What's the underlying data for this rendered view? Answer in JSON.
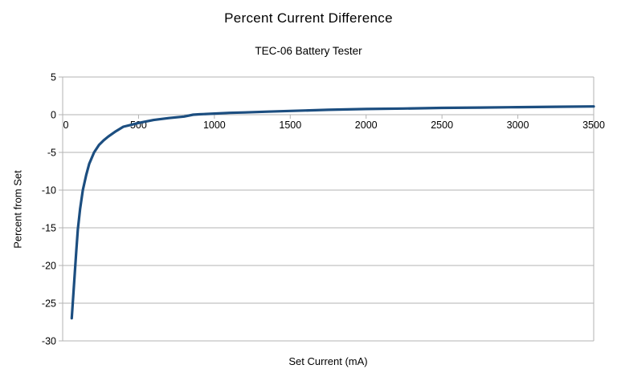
{
  "chart_data": {
    "type": "line",
    "title": "Percent Current Difference",
    "subtitle": "TEC-06 Battery Tester",
    "xlabel": "Set Current (mA)",
    "ylabel": "Percent from Set",
    "xlim": [
      0,
      3500
    ],
    "ylim": [
      -30,
      5
    ],
    "x_ticks": [
      0,
      500,
      1000,
      1500,
      2000,
      2500,
      3000,
      3500
    ],
    "y_ticks": [
      5,
      0,
      -5,
      -10,
      -15,
      -20,
      -25,
      -30
    ],
    "grid": "horizontal-only",
    "legend": "none",
    "series": [
      {
        "name": "Percent from Set",
        "color": "#1c4e80",
        "x": [
          60,
          70,
          80,
          90,
          100,
          115,
          133,
          155,
          175,
          207,
          240,
          270,
          300,
          350,
          400,
          450,
          500,
          600,
          700,
          800,
          860,
          900,
          1000,
          1100,
          1200,
          1350,
          1500,
          1750,
          2000,
          2250,
          2500,
          2750,
          3000,
          3250,
          3500
        ],
        "y": [
          -27,
          -24,
          -21,
          -18,
          -15.2,
          -12.5,
          -10,
          -8,
          -6.5,
          -5,
          -4,
          -3.4,
          -2.9,
          -2.2,
          -1.6,
          -1.35,
          -1.1,
          -0.7,
          -0.45,
          -0.25,
          0,
          0.05,
          0.15,
          0.25,
          0.3,
          0.4,
          0.5,
          0.65,
          0.75,
          0.82,
          0.9,
          0.95,
          1.0,
          1.05,
          1.1
        ]
      }
    ]
  },
  "colors": {
    "background": "#ffffff",
    "grid": "#b3b3b3",
    "axis": "#b3b3b3",
    "tick_text": "#000000",
    "line": "#1c4e80"
  }
}
